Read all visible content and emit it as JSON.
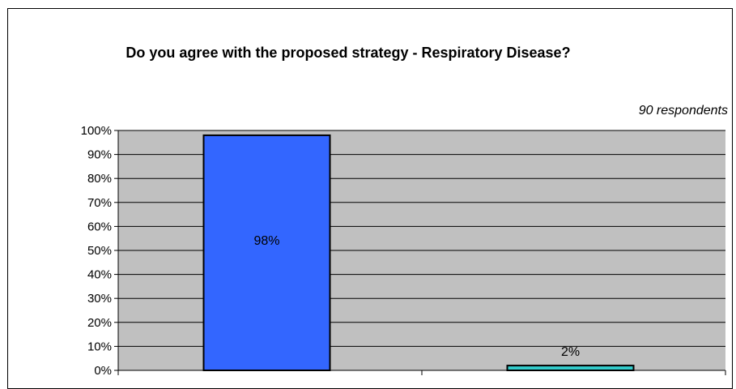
{
  "chart_data": {
    "type": "bar",
    "title": "Do you agree with the proposed strategy - Respiratory Disease?",
    "subtitle": "90 respondents",
    "categories": [
      "",
      ""
    ],
    "values": [
      98,
      2
    ],
    "data_labels": [
      "98%",
      "2%"
    ],
    "ylim": [
      0,
      100
    ],
    "yticks": [
      "0%",
      "10%",
      "20%",
      "30%",
      "40%",
      "50%",
      "60%",
      "70%",
      "80%",
      "90%",
      "100%"
    ],
    "xlabel": "",
    "ylabel": "",
    "grid": true,
    "colors": {
      "plot_background": "#c0c0c0",
      "bar_1": "#3366ff",
      "bar_2": "#33cccc",
      "gridline": "#000000"
    }
  }
}
